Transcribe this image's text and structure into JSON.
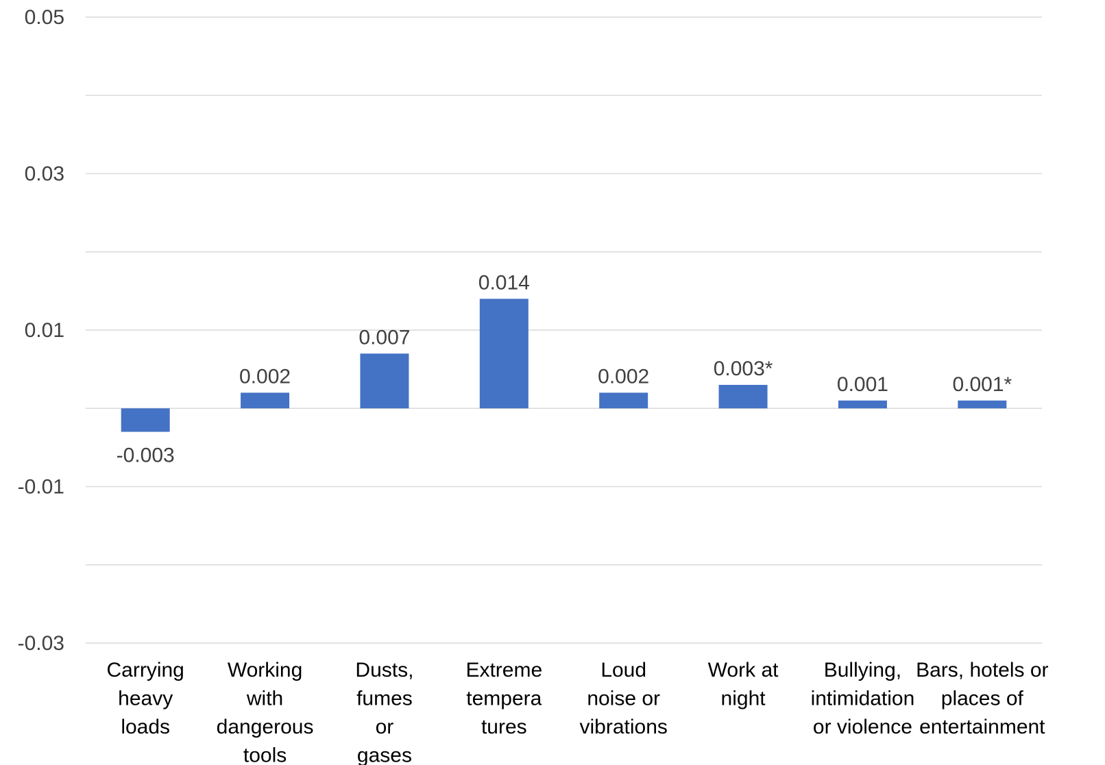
{
  "chart_data": {
    "type": "bar",
    "categories": [
      [
        "Carrying",
        "heavy",
        "loads"
      ],
      [
        "Working",
        "with",
        "dangerous",
        "tools"
      ],
      [
        "Dusts,",
        "fumes",
        "or",
        "gases"
      ],
      [
        "Extreme",
        "tempera",
        "tures"
      ],
      [
        "Loud",
        "noise or",
        "vibrations"
      ],
      [
        "Work at",
        "night"
      ],
      [
        "Bullying,",
        "intimidation",
        "or violence"
      ],
      [
        "Bars, hotels or",
        "places of",
        "entertainment"
      ]
    ],
    "values": [
      -0.003,
      0.002,
      0.007,
      0.014,
      0.002,
      0.003,
      0.001,
      0.001
    ],
    "data_labels": [
      "-0.003",
      "0.002",
      "0.007",
      "0.014",
      "0.002",
      "0.003*",
      "0.001",
      "0.001*"
    ],
    "ylim": [
      -0.03,
      0.05
    ],
    "y_gridlines": [
      -0.03,
      -0.02,
      -0.01,
      0.0,
      0.01,
      0.02,
      0.03,
      0.04,
      0.05
    ],
    "y_tick_values": [
      0.05,
      0.03,
      0.01,
      -0.01,
      -0.03
    ],
    "y_tick_labels": [
      "0.05",
      "0.03",
      "0.01",
      "-0.01",
      "-0.03"
    ],
    "grid": true,
    "bar_color": "#4472C4",
    "grid_color": "#D9D9D9",
    "title": "",
    "xlabel": "",
    "ylabel": ""
  }
}
